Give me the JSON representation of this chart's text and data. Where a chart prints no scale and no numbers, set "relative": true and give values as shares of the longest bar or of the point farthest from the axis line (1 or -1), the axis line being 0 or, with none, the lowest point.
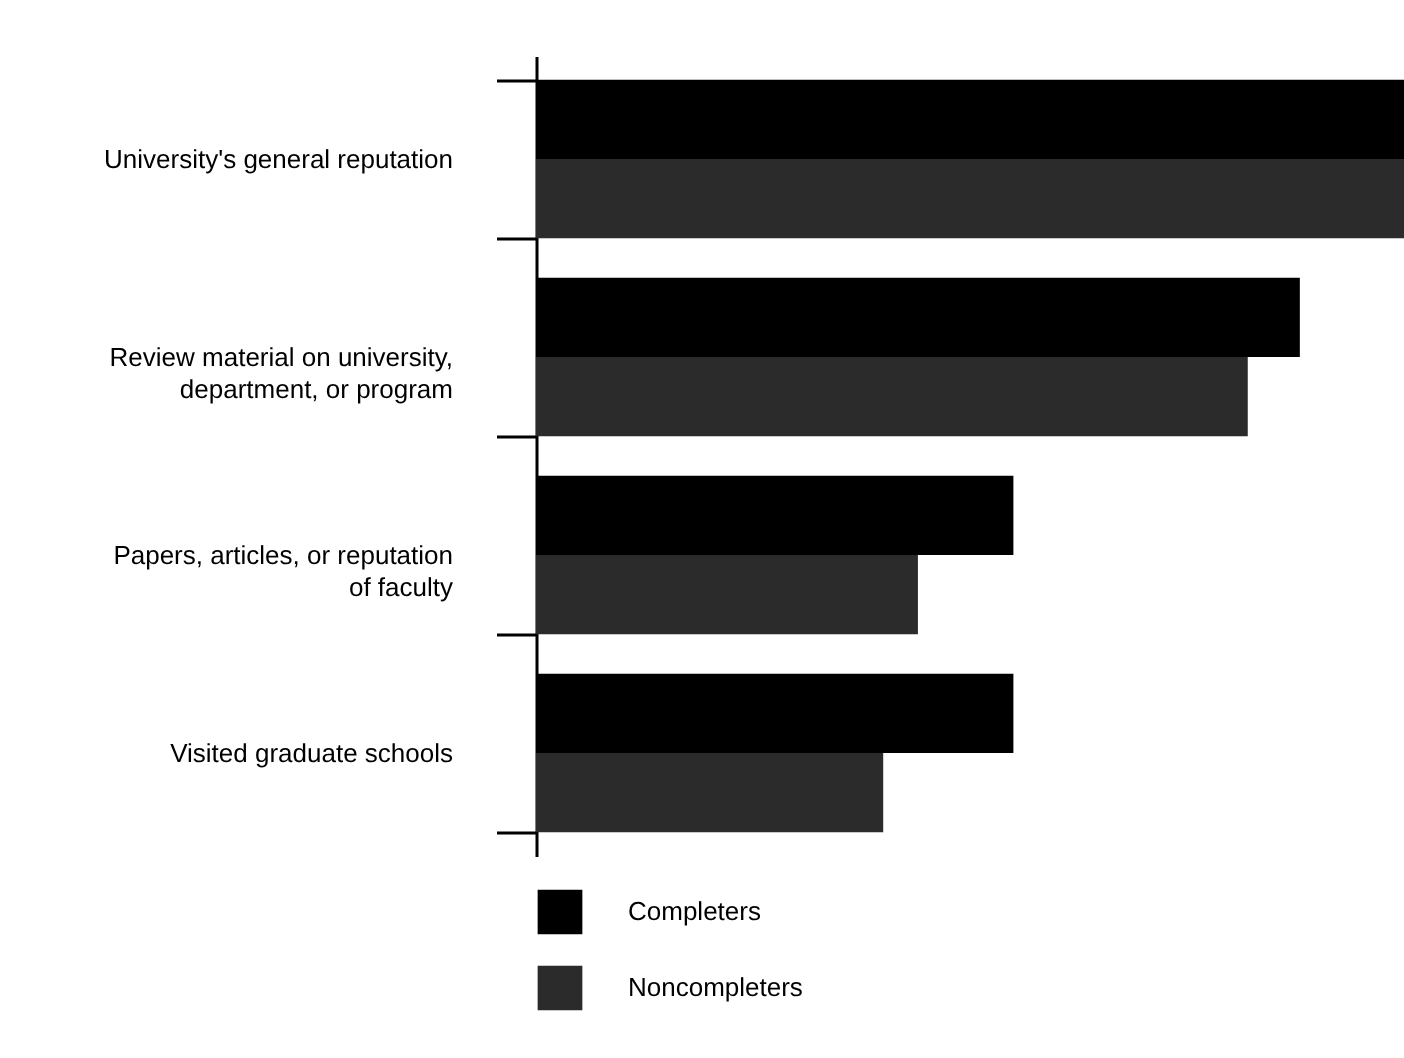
{
  "chart_data": {
    "type": "bar",
    "orientation": "horizontal",
    "relative": true,
    "legend": "bottom",
    "categories": [
      "University's general reputation",
      "Review material on university, department, or program",
      "Papers, articles, or reputation of faculty",
      "Visited graduate schools"
    ],
    "series": [
      {
        "name": "Completers",
        "color": "#000000",
        "values": [
          1,
          0.88,
          0.55,
          0.55
        ]
      },
      {
        "name": "Noncompleters",
        "color": "#2b2b2b",
        "values": [
          1,
          0.82,
          0.44,
          0.4
        ]
      }
    ]
  }
}
